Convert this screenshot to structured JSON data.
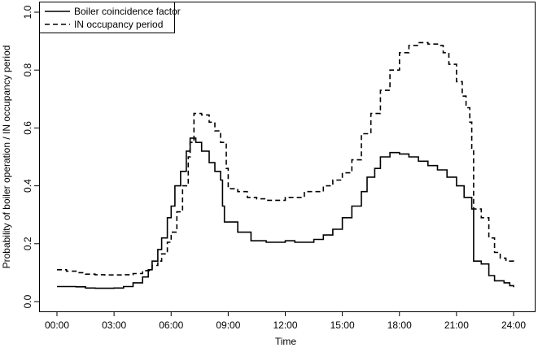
{
  "chart_data": {
    "type": "line",
    "title": "",
    "xlabel": "Time",
    "ylabel": "Probability of boiler operation / IN occupancy period",
    "x_ticks": [
      "00:00",
      "03:00",
      "06:00",
      "09:00",
      "12:00",
      "15:00",
      "18:00",
      "21:00",
      "24:00"
    ],
    "y_ticks": [
      "0.0",
      "0.2",
      "0.4",
      "0.6",
      "0.8",
      "1.0"
    ],
    "xlim": [
      0,
      24
    ],
    "ylim": [
      0,
      1
    ],
    "grid": false,
    "legend_position": "top-left",
    "series": [
      {
        "name": "Boiler coincidence factor",
        "style": "solid",
        "color": "#000000",
        "points": [
          [
            0.0,
            0.052
          ],
          [
            1.0,
            0.051
          ],
          [
            1.5,
            0.047
          ],
          [
            2.0,
            0.046
          ],
          [
            3.0,
            0.047
          ],
          [
            3.5,
            0.052
          ],
          [
            4.0,
            0.065
          ],
          [
            4.5,
            0.085
          ],
          [
            4.8,
            0.11
          ],
          [
            5.0,
            0.14
          ],
          [
            5.3,
            0.18
          ],
          [
            5.5,
            0.22
          ],
          [
            5.8,
            0.29
          ],
          [
            6.0,
            0.33
          ],
          [
            6.2,
            0.4
          ],
          [
            6.5,
            0.45
          ],
          [
            6.8,
            0.52
          ],
          [
            7.0,
            0.565
          ],
          [
            7.3,
            0.55
          ],
          [
            7.6,
            0.52
          ],
          [
            8.0,
            0.48
          ],
          [
            8.3,
            0.45
          ],
          [
            8.6,
            0.42
          ],
          [
            8.7,
            0.33
          ],
          [
            8.8,
            0.275
          ],
          [
            9.5,
            0.24
          ],
          [
            10.2,
            0.21
          ],
          [
            11.0,
            0.205
          ],
          [
            12.0,
            0.21
          ],
          [
            12.5,
            0.205
          ],
          [
            13.5,
            0.215
          ],
          [
            14.0,
            0.23
          ],
          [
            14.5,
            0.25
          ],
          [
            15.0,
            0.29
          ],
          [
            15.5,
            0.33
          ],
          [
            16.0,
            0.38
          ],
          [
            16.3,
            0.43
          ],
          [
            16.7,
            0.46
          ],
          [
            17.0,
            0.5
          ],
          [
            17.5,
            0.515
          ],
          [
            18.0,
            0.51
          ],
          [
            18.5,
            0.5
          ],
          [
            19.0,
            0.485
          ],
          [
            19.5,
            0.47
          ],
          [
            20.0,
            0.455
          ],
          [
            20.5,
            0.43
          ],
          [
            21.0,
            0.4
          ],
          [
            21.4,
            0.36
          ],
          [
            21.8,
            0.32
          ],
          [
            21.9,
            0.14
          ],
          [
            22.3,
            0.13
          ],
          [
            22.7,
            0.09
          ],
          [
            23.0,
            0.072
          ],
          [
            23.5,
            0.065
          ],
          [
            23.8,
            0.055
          ],
          [
            24.0,
            0.05
          ]
        ]
      },
      {
        "name": "IN occupancy period",
        "style": "dashed",
        "color": "#000000",
        "points": [
          [
            0.0,
            0.11
          ],
          [
            0.5,
            0.105
          ],
          [
            1.0,
            0.1
          ],
          [
            1.5,
            0.095
          ],
          [
            2.0,
            0.093
          ],
          [
            2.5,
            0.092
          ],
          [
            3.0,
            0.092
          ],
          [
            3.5,
            0.093
          ],
          [
            4.0,
            0.097
          ],
          [
            4.5,
            0.107
          ],
          [
            5.0,
            0.125
          ],
          [
            5.3,
            0.14
          ],
          [
            5.5,
            0.165
          ],
          [
            5.8,
            0.205
          ],
          [
            6.0,
            0.24
          ],
          [
            6.3,
            0.31
          ],
          [
            6.6,
            0.4
          ],
          [
            6.9,
            0.5
          ],
          [
            7.0,
            0.55
          ],
          [
            7.2,
            0.65
          ],
          [
            7.6,
            0.645
          ],
          [
            8.0,
            0.62
          ],
          [
            8.3,
            0.59
          ],
          [
            8.6,
            0.55
          ],
          [
            8.9,
            0.46
          ],
          [
            9.0,
            0.39
          ],
          [
            9.5,
            0.38
          ],
          [
            10.0,
            0.36
          ],
          [
            10.5,
            0.355
          ],
          [
            11.0,
            0.35
          ],
          [
            12.0,
            0.36
          ],
          [
            13.0,
            0.38
          ],
          [
            14.0,
            0.4
          ],
          [
            14.5,
            0.42
          ],
          [
            15.0,
            0.445
          ],
          [
            15.5,
            0.49
          ],
          [
            16.0,
            0.58
          ],
          [
            16.5,
            0.65
          ],
          [
            17.0,
            0.73
          ],
          [
            17.5,
            0.8
          ],
          [
            18.0,
            0.86
          ],
          [
            18.5,
            0.885
          ],
          [
            19.0,
            0.895
          ],
          [
            19.5,
            0.89
          ],
          [
            20.0,
            0.885
          ],
          [
            20.3,
            0.86
          ],
          [
            20.6,
            0.82
          ],
          [
            21.0,
            0.76
          ],
          [
            21.3,
            0.71
          ],
          [
            21.5,
            0.67
          ],
          [
            21.7,
            0.62
          ],
          [
            21.8,
            0.53
          ],
          [
            21.9,
            0.32
          ],
          [
            22.3,
            0.29
          ],
          [
            22.7,
            0.22
          ],
          [
            23.0,
            0.17
          ],
          [
            23.3,
            0.15
          ],
          [
            23.6,
            0.14
          ],
          [
            24.0,
            0.135
          ]
        ]
      }
    ]
  }
}
